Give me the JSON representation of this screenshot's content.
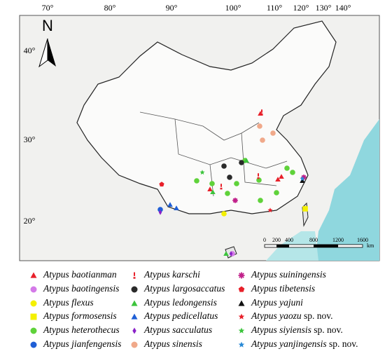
{
  "map": {
    "north": "N",
    "longitudes": [
      "70°",
      "80°",
      "90°",
      "100°",
      "110°",
      "120°",
      "130°",
      "140°"
    ],
    "latitudes": [
      "40°",
      "30°",
      "20°"
    ],
    "scale_bar": {
      "ticks": [
        "0",
        "200",
        "400",
        "800",
        "1200",
        "1600"
      ],
      "unit": "km"
    }
  },
  "legend": [
    {
      "name": "Atypus baotianman",
      "shape": "triangle",
      "color": "#e8202a"
    },
    {
      "name": "Atypus baotingensis",
      "shape": "circle",
      "color": "#d47ae8"
    },
    {
      "name": "Atypus flexus",
      "shape": "circle",
      "color": "#f4f000"
    },
    {
      "name": "Atypus formosensis",
      "shape": "square",
      "color": "#f4f000"
    },
    {
      "name": "Atypus heterothecus",
      "shape": "circle",
      "color": "#5fd23a"
    },
    {
      "name": "Atypus jianfengensis",
      "shape": "circle",
      "color": "#1f5fd6"
    },
    {
      "name": "Atypus karschi",
      "shape": "bang",
      "color": "#e8202a"
    },
    {
      "name": "Atypus largosaccatus",
      "shape": "circle",
      "color": "#2a2a2a"
    },
    {
      "name": "Atypus ledongensis",
      "shape": "triangle",
      "color": "#3cc43c"
    },
    {
      "name": "Atypus pedicellatus",
      "shape": "triangle",
      "color": "#1f5fd6"
    },
    {
      "name": "Atypus sacculatus",
      "shape": "diamond",
      "color": "#8a22c8"
    },
    {
      "name": "Atypus sinensis",
      "shape": "circle",
      "color": "#f0a98a"
    },
    {
      "name": "Atypus suiningensis",
      "shape": "asterisk",
      "color": "#c0208a"
    },
    {
      "name": "Atypus tibetensis",
      "shape": "pentagon",
      "color": "#e8202a"
    },
    {
      "name": "Atypus yajuni",
      "shape": "triangle",
      "color": "#111111"
    },
    {
      "name": "Atypus yaozu",
      "suffix": "sp. nov.",
      "shape": "star",
      "color": "#e8202a"
    },
    {
      "name": "Atypus siyiensis",
      "suffix": "sp. nov.",
      "shape": "star",
      "color": "#3cc43c"
    },
    {
      "name": "Atypus yanjingensis",
      "suffix": "sp. nov.",
      "shape": "star",
      "color": "#2a8ad6"
    }
  ]
}
